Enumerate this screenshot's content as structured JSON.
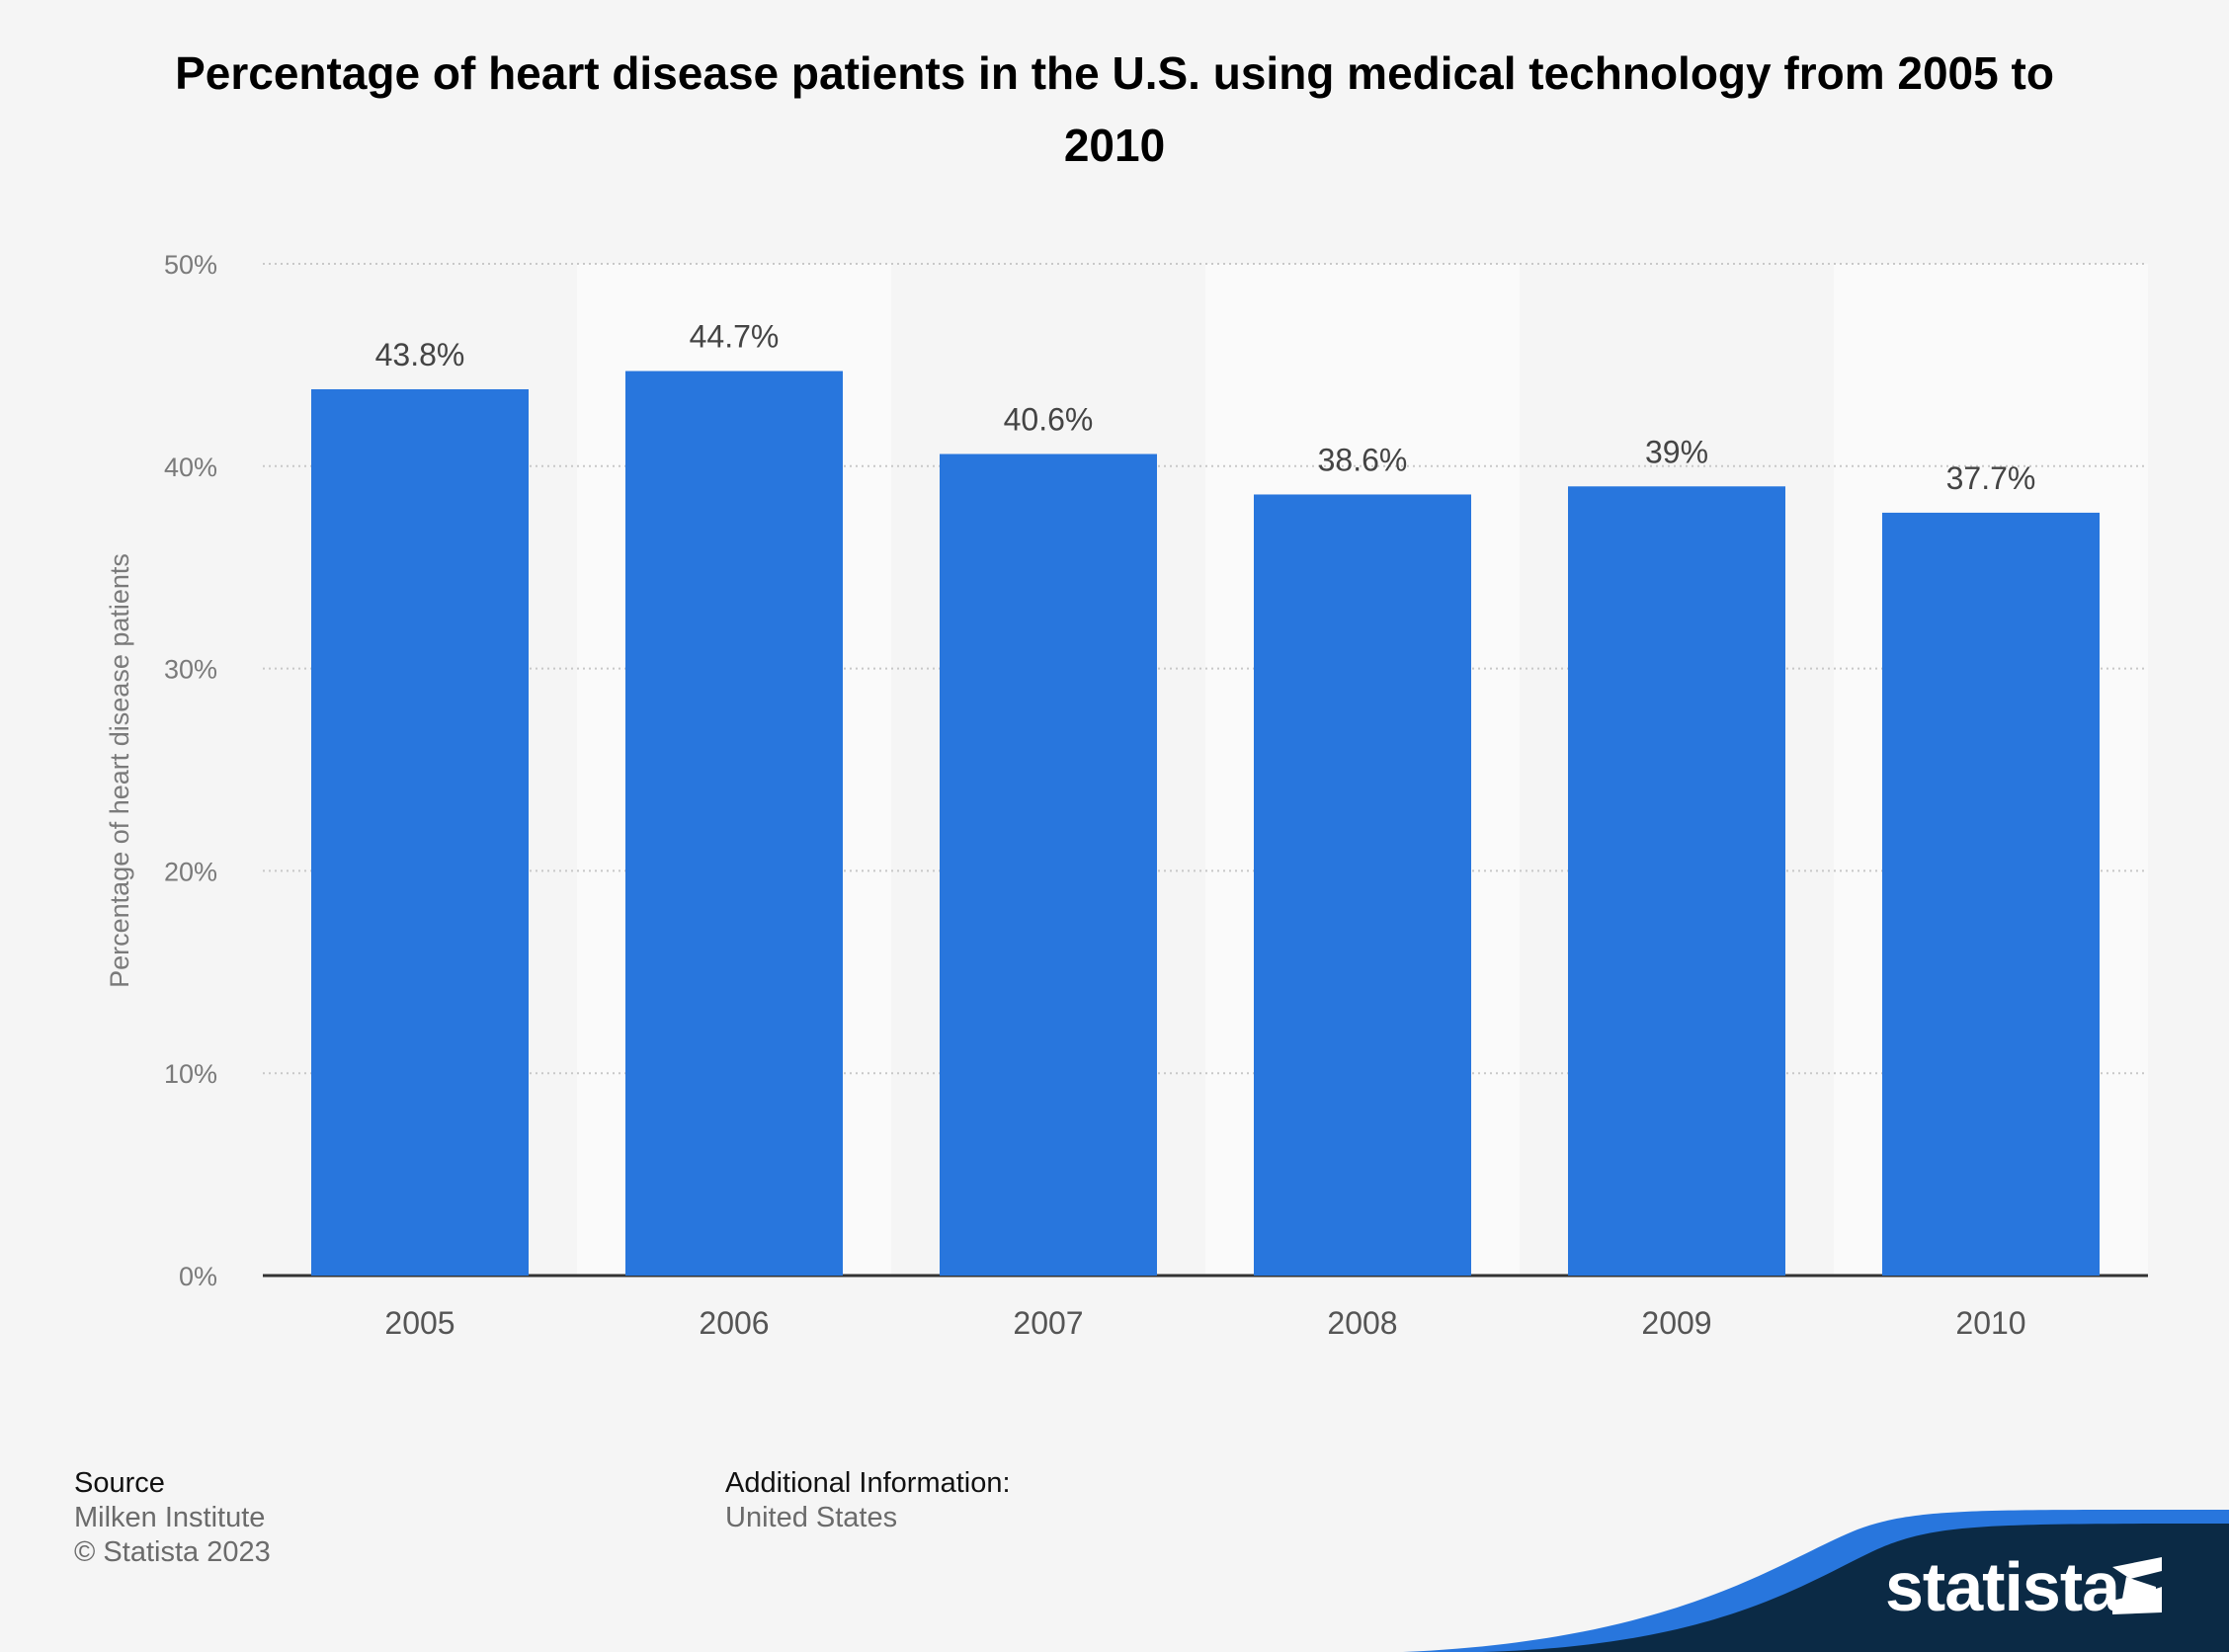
{
  "chart_data": {
    "type": "bar",
    "title": "Percentage of heart disease patients in the U.S. using medical technology from 2005 to 2010",
    "categories": [
      "2005",
      "2006",
      "2007",
      "2008",
      "2009",
      "2010"
    ],
    "values": [
      43.8,
      44.7,
      40.6,
      38.6,
      39,
      37.7
    ],
    "data_labels": [
      "43.8%",
      "44.7%",
      "40.6%",
      "38.6%",
      "39%",
      "37.7%"
    ],
    "ylabel": "Percentage of heart disease patients",
    "xlabel": "",
    "ylim": [
      0,
      50
    ],
    "yticks": [
      "0%",
      "10%",
      "20%",
      "30%",
      "40%",
      "50%"
    ],
    "grid": true,
    "bar_color": "#2876dd"
  },
  "footer": {
    "source_heading": "Source",
    "source_name": "Milken Institute",
    "copyright": "© Statista 2023",
    "additional_heading": "Additional Information:",
    "additional_text": "United States"
  },
  "brand": {
    "logo_text": "statista",
    "logo_icon": "statista-logo-icon",
    "navy": "#0b2a45",
    "blue": "#2876dd"
  }
}
